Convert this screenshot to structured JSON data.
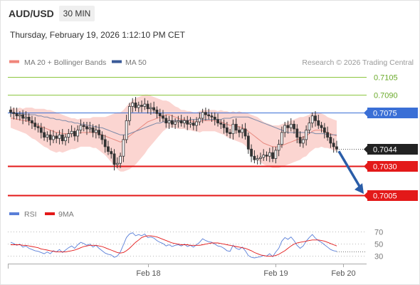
{
  "header": {
    "pair": "AUD/USD",
    "interval": "30 MIN",
    "datetime": "Thursday, February 19, 2026 1:12:10 PM CET"
  },
  "legend": {
    "ma20_bb": "MA 20 + Bollinger Bands",
    "ma50": "MA 50",
    "rsi": "RSI",
    "rsi_ma": "9MA",
    "credit": "Research © 2026 Trading Central"
  },
  "colors": {
    "resistance": "#8cc63f",
    "pivot": "#3a6fd6",
    "support": "#e31919",
    "last_price": "#222222",
    "forecast_arrow": "#2a5da8",
    "bollinger_fill": "#fbd5d1",
    "ma20": "#e88a80",
    "ma50": "#7d8aa8",
    "candle": "#333333",
    "rsi": "#5a7fd8",
    "rsi_ma": "#e31919"
  },
  "chart_data": [
    {
      "type": "candlestick",
      "series": [
        {
          "name": "MA 20 + Bollinger Bands"
        },
        {
          "name": "MA 50"
        }
      ],
      "ylim": [
        0.6995,
        0.7115
      ],
      "x_tick_labels": [
        "Feb 18",
        "Feb 19",
        "Feb 20"
      ],
      "x_tick_index": [
        45,
        87,
        109
      ],
      "levels": [
        {
          "value": 0.7105,
          "label": "0.7105",
          "kind": "resistance"
        },
        {
          "value": 0.709,
          "label": "0.7090",
          "kind": "resistance"
        },
        {
          "value": 0.7075,
          "label": "0.7075",
          "kind": "pivot"
        },
        {
          "value": 0.7044,
          "label": "0.7044",
          "kind": "last"
        },
        {
          "value": 0.703,
          "label": "0.7030",
          "kind": "support"
        },
        {
          "value": 0.7005,
          "label": "0.7005",
          "kind": "support"
        }
      ],
      "close": [
        0.7075,
        0.7074,
        0.7072,
        0.7073,
        0.707,
        0.7071,
        0.7068,
        0.7066,
        0.7063,
        0.7062,
        0.7058,
        0.7054,
        0.7056,
        0.7052,
        0.7055,
        0.7053,
        0.7056,
        0.7051,
        0.7054,
        0.7057,
        0.7059,
        0.7055,
        0.706,
        0.7064,
        0.7063,
        0.7061,
        0.7062,
        0.7058,
        0.706,
        0.7056,
        0.7052,
        0.7046,
        0.7042,
        0.704,
        0.7031,
        0.7032,
        0.7038,
        0.7052,
        0.7068,
        0.708,
        0.7083,
        0.7079,
        0.7081,
        0.708,
        0.7082,
        0.7078,
        0.7079,
        0.7077,
        0.7074,
        0.7072,
        0.707,
        0.7066,
        0.7068,
        0.7065,
        0.7067,
        0.7068,
        0.7066,
        0.7068,
        0.7065,
        0.7066,
        0.7064,
        0.7067,
        0.707,
        0.7075,
        0.7073,
        0.7072,
        0.7071,
        0.7069,
        0.7066,
        0.7065,
        0.7062,
        0.7058,
        0.7057,
        0.7065,
        0.706,
        0.7058,
        0.7061,
        0.7055,
        0.7044,
        0.7038,
        0.7035,
        0.7036,
        0.7037,
        0.7039,
        0.7038,
        0.7041,
        0.7036,
        0.7043,
        0.7048,
        0.7058,
        0.7064,
        0.7062,
        0.7065,
        0.7061,
        0.7054,
        0.7049,
        0.7052,
        0.706,
        0.7066,
        0.7072,
        0.7068,
        0.7064,
        0.7062,
        0.7058,
        0.7054,
        0.7049,
        0.7046,
        0.7044
      ],
      "ma20": [
        0.707,
        0.707,
        0.7069,
        0.7069,
        0.7068,
        0.7068,
        0.7067,
        0.7066,
        0.7065,
        0.7064,
        0.7063,
        0.7062,
        0.7061,
        0.706,
        0.7059,
        0.7058,
        0.7058,
        0.7057,
        0.7057,
        0.7057,
        0.7057,
        0.7057,
        0.7057,
        0.7058,
        0.7058,
        0.7058,
        0.7058,
        0.7058,
        0.7058,
        0.7057,
        0.7056,
        0.7055,
        0.7054,
        0.7053,
        0.7052,
        0.7051,
        0.705,
        0.7051,
        0.7053,
        0.7055,
        0.7057,
        0.7059,
        0.7061,
        0.7063,
        0.7065,
        0.7067,
        0.7068,
        0.7069,
        0.707,
        0.7071,
        0.7072,
        0.7073,
        0.7073,
        0.7072,
        0.7071,
        0.707,
        0.7069,
        0.7069,
        0.7068,
        0.7068,
        0.7067,
        0.7067,
        0.7067,
        0.7068,
        0.7068,
        0.7068,
        0.7068,
        0.7068,
        0.7067,
        0.7067,
        0.7066,
        0.7065,
        0.7064,
        0.7064,
        0.7063,
        0.7063,
        0.7062,
        0.7061,
        0.7059,
        0.7057,
        0.7055,
        0.7053,
        0.7051,
        0.7049,
        0.7048,
        0.7047,
        0.7046,
        0.7046,
        0.7046,
        0.7047,
        0.7048,
        0.7049,
        0.705,
        0.7051,
        0.7052,
        0.7053,
        0.7054,
        0.7055,
        0.7057,
        0.7059,
        0.706,
        0.706,
        0.706,
        0.7059,
        0.7058,
        0.7057,
        0.7056,
        0.7055
      ],
      "bb_width": [
        0.0008,
        0.0009,
        0.0009,
        0.001,
        0.001,
        0.0011,
        0.0012,
        0.0013,
        0.0013,
        0.0014,
        0.0015,
        0.0016,
        0.0016,
        0.0017,
        0.0017,
        0.0017,
        0.0016,
        0.0016,
        0.0015,
        0.0014,
        0.0013,
        0.0013,
        0.0012,
        0.0012,
        0.0012,
        0.0012,
        0.0012,
        0.0013,
        0.0013,
        0.0014,
        0.0015,
        0.0016,
        0.0018,
        0.002,
        0.0022,
        0.0024,
        0.0025,
        0.0026,
        0.0027,
        0.0028,
        0.0028,
        0.0028,
        0.0027,
        0.0026,
        0.0025,
        0.0023,
        0.0021,
        0.0019,
        0.0017,
        0.0015,
        0.0013,
        0.0012,
        0.0011,
        0.001,
        0.0009,
        0.0009,
        0.0008,
        0.0008,
        0.0008,
        0.0008,
        0.0008,
        0.0008,
        0.0009,
        0.0009,
        0.0009,
        0.0009,
        0.0009,
        0.0009,
        0.0009,
        0.001,
        0.001,
        0.0011,
        0.0011,
        0.0012,
        0.0012,
        0.0013,
        0.0013,
        0.0014,
        0.0015,
        0.0016,
        0.0017,
        0.0018,
        0.0018,
        0.0018,
        0.0018,
        0.0018,
        0.0018,
        0.0018,
        0.0018,
        0.0018,
        0.0018,
        0.0018,
        0.0018,
        0.0018,
        0.0018,
        0.0018,
        0.0017,
        0.0017,
        0.0016,
        0.0016,
        0.0015,
        0.0015,
        0.0014,
        0.0014,
        0.0013,
        0.0013,
        0.0013,
        0.0013
      ],
      "ma50": [
        0.7074,
        0.7074,
        0.7074,
        0.7074,
        0.7074,
        0.7073,
        0.7073,
        0.7073,
        0.7073,
        0.7072,
        0.7072,
        0.7071,
        0.7071,
        0.707,
        0.707,
        0.7069,
        0.7069,
        0.7068,
        0.7068,
        0.7067,
        0.7067,
        0.7066,
        0.7066,
        0.7065,
        0.7065,
        0.7064,
        0.7064,
        0.7063,
        0.7063,
        0.7062,
        0.7062,
        0.7061,
        0.706,
        0.7059,
        0.7058,
        0.7057,
        0.7056,
        0.7056,
        0.7056,
        0.7057,
        0.7058,
        0.7059,
        0.706,
        0.7061,
        0.7062,
        0.7063,
        0.7064,
        0.7065,
        0.7066,
        0.7066,
        0.7067,
        0.7067,
        0.7068,
        0.7068,
        0.7068,
        0.7068,
        0.7068,
        0.7068,
        0.7068,
        0.7069,
        0.7069,
        0.7069,
        0.7069,
        0.7069,
        0.7069,
        0.7069,
        0.7069,
        0.7069,
        0.7069,
        0.7069,
        0.707,
        0.707,
        0.707,
        0.7071,
        0.7071,
        0.7071,
        0.7071,
        0.7071,
        0.7071,
        0.707,
        0.7069,
        0.7068,
        0.7067,
        0.7066,
        0.7065,
        0.7064,
        0.7063,
        0.7062,
        0.7061,
        0.706,
        0.7059,
        0.7058,
        0.7058,
        0.7058,
        0.7058,
        0.7058,
        0.7058,
        0.7058,
        0.7058,
        0.7058,
        0.7057,
        0.7057,
        0.7057,
        0.7057,
        0.7056,
        0.7056,
        0.7056,
        0.7056
      ]
    },
    {
      "type": "line",
      "series": [
        {
          "name": "RSI",
          "values": [
            52,
            50,
            47,
            49,
            44,
            46,
            42,
            40,
            38,
            37,
            35,
            33,
            36,
            33,
            38,
            36,
            40,
            35,
            39,
            43,
            46,
            42,
            48,
            52,
            50,
            47,
            49,
            44,
            47,
            42,
            38,
            34,
            32,
            31,
            27,
            29,
            36,
            48,
            60,
            66,
            68,
            63,
            65,
            63,
            66,
            60,
            61,
            59,
            55,
            52,
            50,
            46,
            48,
            45,
            47,
            48,
            46,
            49,
            45,
            47,
            44,
            48,
            52,
            58,
            55,
            53,
            52,
            49,
            46,
            45,
            42,
            38,
            37,
            47,
            42,
            40,
            44,
            38,
            30,
            27,
            26,
            27,
            28,
            30,
            29,
            33,
            28,
            36,
            42,
            54,
            60,
            57,
            61,
            55,
            47,
            42,
            46,
            54,
            60,
            65,
            59,
            55,
            52,
            48,
            44,
            40,
            38,
            37
          ]
        },
        {
          "name": "9MA",
          "values": [
            48,
            48,
            48,
            48,
            47,
            47,
            46,
            45,
            44,
            43,
            41,
            40,
            39,
            38,
            37,
            36,
            36,
            36,
            36,
            37,
            38,
            39,
            41,
            43,
            45,
            46,
            47,
            47,
            47,
            46,
            45,
            43,
            41,
            39,
            37,
            35,
            34,
            35,
            38,
            42,
            47,
            52,
            56,
            60,
            62,
            63,
            63,
            62,
            61,
            59,
            57,
            55,
            53,
            51,
            50,
            49,
            48,
            48,
            48,
            47,
            47,
            47,
            47,
            48,
            49,
            50,
            51,
            51,
            51,
            50,
            49,
            48,
            47,
            46,
            45,
            44,
            43,
            42,
            40,
            38,
            35,
            33,
            31,
            30,
            29,
            29,
            29,
            30,
            32,
            35,
            38,
            42,
            46,
            49,
            51,
            52,
            53,
            54,
            55,
            56,
            56,
            56,
            55,
            54,
            52,
            50,
            48,
            46
          ]
        }
      ],
      "ylim": [
        20,
        80
      ],
      "y_ticks": [
        30,
        50,
        70
      ],
      "y_tick_labels": [
        "30",
        "50",
        "70"
      ],
      "x_tick_labels": [
        "Feb 18",
        "Feb 19",
        "Feb 20"
      ]
    }
  ]
}
